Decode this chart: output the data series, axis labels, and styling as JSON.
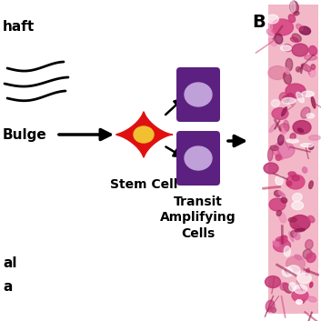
{
  "bg_color": "#ffffff",
  "label_b": "B",
  "label_shaft": "haft",
  "label_bulge": "Bulge",
  "label_al": "al",
  "label_a2": "a",
  "label_stem_cell": "Stem Cell",
  "label_transit": "Transit\nAmplifying\nCells",
  "stem_cell_color": "#e01010",
  "stem_cell_nucleus_color": "#f0c030",
  "transit_cell_body_color": "#5c2080",
  "transit_cell_nucleus_color": "#c0a0d8",
  "arrow_color": "#000000",
  "fig_width": 3.53,
  "fig_height": 3.53,
  "dpi": 100
}
